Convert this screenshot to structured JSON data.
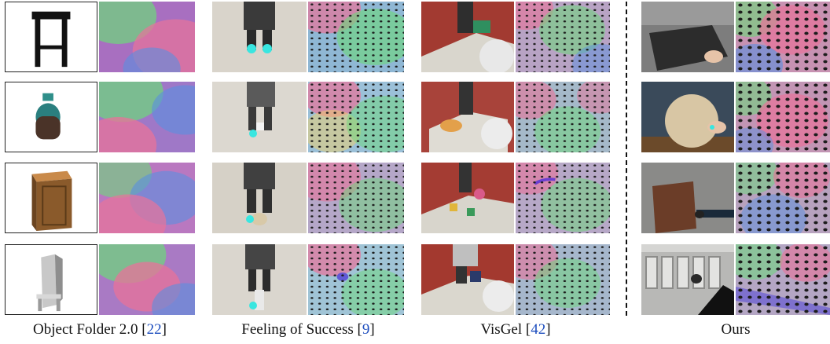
{
  "columns": [
    {
      "id": "object-folder",
      "label": "Object Folder 2.0 ",
      "ref": "22"
    },
    {
      "id": "feeling-of-success",
      "label": "Feeling of Success ",
      "ref": "9"
    },
    {
      "id": "visgel",
      "label": "VisGel ",
      "ref": "42"
    },
    {
      "id": "ours",
      "label": "Ours",
      "ref": ""
    }
  ],
  "objects": [
    "stool-icon",
    "vase-icon",
    "cabinet-icon",
    "chair-icon"
  ],
  "colors": {
    "cite": "#1f4fbf",
    "tactile_pink": "#e8739a",
    "tactile_green": "#6cd87a",
    "tactile_blue": "#5a8fe0",
    "table_red": "#b8473b",
    "gripper_glow": "#39e6e0"
  }
}
